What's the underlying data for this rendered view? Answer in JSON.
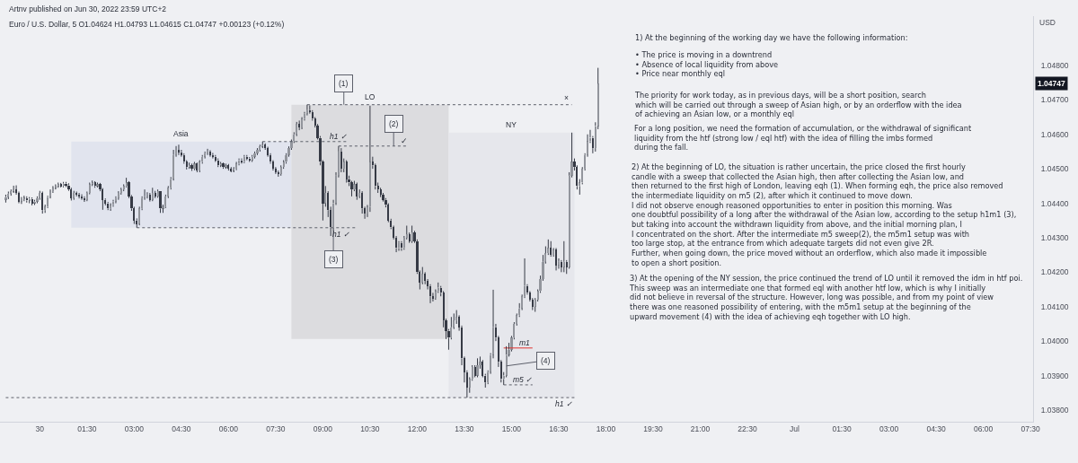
{
  "chart_data": {
    "type": "candlestick",
    "title": "Euro / U.S. Dollar, 5 O1.04624 H1.04793 L1.04615 C1.04747 +0.00123 (+0.12%)",
    "ylabel": "USD",
    "color": "#363a45",
    "colors": [
      "#92959c",
      "#92959c",
      "#92959c",
      "#92959c",
      "#363a45",
      "#363a45",
      "#92959c",
      "#92959c",
      "#363a45",
      "#92959c",
      "#363a45",
      "#92959c",
      "#92959c",
      "#92959c",
      "#363a45",
      "#92959c",
      "#92959c",
      "#92959c",
      "#92959c",
      "#92959c",
      "#92959c",
      "#363a45",
      "#92959c",
      "#363a45",
      "#363a45",
      "#363a45",
      "#92959c",
      "#363a45",
      "#363a45",
      "#363a45",
      "#363a45",
      "#92959c",
      "#92959c",
      "#92959c",
      "#363a45",
      "#92959c",
      "#363a45",
      "#363a45",
      "#363a45",
      "#363a45",
      "#92959c",
      "#92959c",
      "#92959c",
      "#92959c",
      "#92959c",
      "#92959c",
      "#92959c",
      "#363a45",
      "#363a45",
      "#363a45",
      "#363a45",
      "#92959c",
      "#92959c",
      "#92959c",
      "#92959c",
      "#363a45",
      "#92959c",
      "#363a45",
      "#92959c",
      "#363a45",
      "#92959c",
      "#92959c",
      "#92959c",
      "#92959c",
      "#92959c",
      "#92959c",
      "#363a45",
      "#363a45",
      "#363a45",
      "#363a45",
      "#92959c",
      "#363a45",
      "#92959c",
      "#363a45",
      "#92959c",
      "#92959c",
      "#92959c",
      "#92959c",
      "#363a45",
      "#363a45",
      "#363a45",
      "#363a45",
      "#92959c",
      "#363a45",
      "#92959c",
      "#363a45",
      "#363a45",
      "#92959c",
      "#92959c",
      "#92959c",
      "#363a45",
      "#92959c",
      "#363a45",
      "#363a45",
      "#92959c",
      "#92959c",
      "#92959c",
      "#92959c",
      "#92959c",
      "#363a45",
      "#363a45",
      "#363a45",
      "#363a45",
      "#363a45",
      "#363a45",
      "#92959c",
      "#92959c",
      "#92959c",
      "#92959c",
      "#92959c",
      "#92959c",
      "#92959c",
      "#363a45",
      "#92959c",
      "#92959c",
      "#92959c",
      "#363a45",
      "#363a45",
      "#363a45",
      "#363a45",
      "#363a45",
      "#363a45",
      "#92959c",
      "#363a45",
      "#363a45",
      "#92959c",
      "#92959c",
      "#92959c",
      "#363a45",
      "#92959c",
      "#363a45",
      "#363a45",
      "#363a45",
      "#92959c",
      "#363a45",
      "#92959c",
      "#363a45",
      "#363a45",
      "#92959c",
      "#92959c",
      "#363a45",
      "#363a45",
      "#363a45",
      "#363a45",
      "#363a45",
      "#363a45",
      "#363a45",
      "#363a45",
      "#363a45",
      "#363a45",
      "#92959c",
      "#363a45",
      "#92959c",
      "#92959c",
      "#363a45",
      "#92959c",
      "#363a45",
      "#363a45",
      "#363a45",
      "#92959c",
      "#363a45",
      "#363a45",
      "#363a45",
      "#363a45",
      "#92959c",
      "#92959c",
      "#363a45",
      "#363a45",
      "#363a45",
      "#363a45",
      "#92959c",
      "#92959c",
      "#92959c",
      "#363a45",
      "#363a45",
      "#363a45",
      "#363a45",
      "#92959c",
      "#92959c",
      "#363a45",
      "#92959c",
      "#92959c",
      "#363a45",
      "#363a45",
      "#92959c",
      "#92959c",
      "#92959c",
      "#363a45",
      "#363a45",
      "#363a45",
      "#92959c",
      "#92959c",
      "#92959c",
      "#92959c",
      "#92959c",
      "#92959c",
      "#92959c",
      "#92959c",
      "#92959c",
      "#363a45",
      "#363a45",
      "#363a45",
      "#92959c",
      "#92959c",
      "#92959c",
      "#92959c",
      "#92959c",
      "#92959c",
      "#363a45",
      "#92959c",
      "#363a45",
      "#92959c",
      "#363a45",
      "#92959c",
      "#363a45",
      "#92959c",
      "#92959c",
      "#363a45",
      "#363a45",
      "#92959c",
      "#92959c",
      "#92959c",
      "#92959c",
      "#92959c",
      "#363a45",
      "#92959c",
      "#92959c"
    ],
    "x": [
      "2022-06-29T22:55",
      "2022-06-29T23:00",
      "2022-06-29T23:05",
      "2022-06-29T23:10",
      "2022-06-29T23:15",
      "2022-06-29T23:20",
      "2022-06-29T23:25",
      "2022-06-29T23:30",
      "2022-06-29T23:35",
      "2022-06-29T23:40",
      "2022-06-29T23:45",
      "2022-06-29T23:50",
      "2022-06-29T23:55",
      "2022-06-30T00:00",
      "2022-06-30T00:05",
      "2022-06-30T00:10",
      "2022-06-30T00:15",
      "2022-06-30T00:20",
      "2022-06-30T00:25",
      "2022-06-30T00:30",
      "2022-06-30T00:35",
      "2022-06-30T00:40",
      "2022-06-30T00:45",
      "2022-06-30T00:50",
      "2022-06-30T00:55",
      "2022-06-30T01:00",
      "2022-06-30T01:05",
      "2022-06-30T01:10",
      "2022-06-30T01:15",
      "2022-06-30T01:20",
      "2022-06-30T01:25",
      "2022-06-30T01:30",
      "2022-06-30T01:35",
      "2022-06-30T01:40",
      "2022-06-30T01:45",
      "2022-06-30T01:50",
      "2022-06-30T01:55",
      "2022-06-30T02:00",
      "2022-06-30T02:05",
      "2022-06-30T02:10",
      "2022-06-30T02:15",
      "2022-06-30T02:20",
      "2022-06-30T02:25",
      "2022-06-30T02:30",
      "2022-06-30T02:35",
      "2022-06-30T02:40",
      "2022-06-30T02:45",
      "2022-06-30T02:50",
      "2022-06-30T02:55",
      "2022-06-30T03:00",
      "2022-06-30T03:05",
      "2022-06-30T03:10",
      "2022-06-30T03:15",
      "2022-06-30T03:20",
      "2022-06-30T03:25",
      "2022-06-30T03:30",
      "2022-06-30T03:35",
      "2022-06-30T03:40",
      "2022-06-30T03:45",
      "2022-06-30T03:50",
      "2022-06-30T03:55",
      "2022-06-30T04:00",
      "2022-06-30T04:05",
      "2022-06-30T04:10",
      "2022-06-30T04:15",
      "2022-06-30T04:20",
      "2022-06-30T04:25",
      "2022-06-30T04:30",
      "2022-06-30T04:35",
      "2022-06-30T04:40",
      "2022-06-30T04:45",
      "2022-06-30T04:50",
      "2022-06-30T04:55",
      "2022-06-30T05:00",
      "2022-06-30T05:05",
      "2022-06-30T05:10",
      "2022-06-30T05:15",
      "2022-06-30T05:20",
      "2022-06-30T05:25",
      "2022-06-30T05:30",
      "2022-06-30T05:35",
      "2022-06-30T05:40",
      "2022-06-30T05:45",
      "2022-06-30T05:50",
      "2022-06-30T05:55",
      "2022-06-30T06:00",
      "2022-06-30T06:05",
      "2022-06-30T06:10",
      "2022-06-30T06:15",
      "2022-06-30T06:20",
      "2022-06-30T06:25",
      "2022-06-30T06:30",
      "2022-06-30T06:35",
      "2022-06-30T06:40",
      "2022-06-30T06:45",
      "2022-06-30T06:50",
      "2022-06-30T06:55",
      "2022-06-30T07:00",
      "2022-06-30T07:05",
      "2022-06-30T07:10",
      "2022-06-30T07:15",
      "2022-06-30T07:20",
      "2022-06-30T07:25",
      "2022-06-30T07:30",
      "2022-06-30T07:35",
      "2022-06-30T07:40",
      "2022-06-30T07:45",
      "2022-06-30T07:50",
      "2022-06-30T07:55",
      "2022-06-30T08:00",
      "2022-06-30T08:05",
      "2022-06-30T08:10",
      "2022-06-30T08:15",
      "2022-06-30T08:20",
      "2022-06-30T08:25",
      "2022-06-30T08:30",
      "2022-06-30T08:35",
      "2022-06-30T08:40",
      "2022-06-30T08:45",
      "2022-06-30T08:50",
      "2022-06-30T08:55",
      "2022-06-30T09:00",
      "2022-06-30T09:05",
      "2022-06-30T09:10",
      "2022-06-30T09:15",
      "2022-06-30T09:20",
      "2022-06-30T09:25",
      "2022-06-30T09:30",
      "2022-06-30T09:35",
      "2022-06-30T09:40",
      "2022-06-30T09:45",
      "2022-06-30T09:50",
      "2022-06-30T09:55",
      "2022-06-30T10:00",
      "2022-06-30T10:05",
      "2022-06-30T10:10",
      "2022-06-30T10:15",
      "2022-06-30T10:20",
      "2022-06-30T10:25",
      "2022-06-30T10:30",
      "2022-06-30T10:35",
      "2022-06-30T10:40",
      "2022-06-30T10:45",
      "2022-06-30T10:50",
      "2022-06-30T10:55",
      "2022-06-30T11:00",
      "2022-06-30T11:05",
      "2022-06-30T11:10",
      "2022-06-30T11:15",
      "2022-06-30T11:20",
      "2022-06-30T11:25",
      "2022-06-30T11:30",
      "2022-06-30T11:35",
      "2022-06-30T11:40",
      "2022-06-30T11:45",
      "2022-06-30T11:50",
      "2022-06-30T11:55",
      "2022-06-30T12:00",
      "2022-06-30T12:05",
      "2022-06-30T12:10",
      "2022-06-30T12:15",
      "2022-06-30T12:20",
      "2022-06-30T12:25",
      "2022-06-30T12:30",
      "2022-06-30T12:35",
      "2022-06-30T12:40",
      "2022-06-30T12:45",
      "2022-06-30T12:50",
      "2022-06-30T12:55",
      "2022-06-30T13:00",
      "2022-06-30T13:05",
      "2022-06-30T13:10",
      "2022-06-30T13:15",
      "2022-06-30T13:20",
      "2022-06-30T13:25",
      "2022-06-30T13:30",
      "2022-06-30T13:35",
      "2022-06-30T13:40",
      "2022-06-30T13:45",
      "2022-06-30T13:50",
      "2022-06-30T13:55",
      "2022-06-30T14:00",
      "2022-06-30T14:05",
      "2022-06-30T14:10",
      "2022-06-30T14:15",
      "2022-06-30T14:20",
      "2022-06-30T14:25",
      "2022-06-30T14:30",
      "2022-06-30T14:35",
      "2022-06-30T14:40",
      "2022-06-30T14:45",
      "2022-06-30T14:50",
      "2022-06-30T14:55",
      "2022-06-30T15:00",
      "2022-06-30T15:05",
      "2022-06-30T15:10",
      "2022-06-30T15:15",
      "2022-06-30T15:20",
      "2022-06-30T15:25",
      "2022-06-30T15:30",
      "2022-06-30T15:35",
      "2022-06-30T15:40",
      "2022-06-30T15:45",
      "2022-06-30T15:50",
      "2022-06-30T15:55",
      "2022-06-30T16:00",
      "2022-06-30T16:05",
      "2022-06-30T16:10",
      "2022-06-30T16:15",
      "2022-06-30T16:20",
      "2022-06-30T16:25",
      "2022-06-30T16:30",
      "2022-06-30T16:35",
      "2022-06-30T16:40",
      "2022-06-30T16:45",
      "2022-06-30T16:50",
      "2022-06-30T16:55",
      "2022-06-30T17:00",
      "2022-06-30T17:05",
      "2022-06-30T17:10",
      "2022-06-30T17:15",
      "2022-06-30T17:20",
      "2022-06-30T17:25",
      "2022-06-30T17:30",
      "2022-06-30T17:35",
      "2022-06-30T17:40",
      "2022-06-30T17:45"
    ],
    "ohlc": [
      [
        1.0441,
        1.04425,
        1.04402,
        1.04418
      ],
      [
        1.04418,
        1.04434,
        1.04412,
        1.04428
      ],
      [
        1.04428,
        1.0444,
        1.04422,
        1.04435
      ],
      [
        1.04435,
        1.04451,
        1.0443,
        1.0444
      ],
      [
        1.0444,
        1.04452,
        1.04425,
        1.0443
      ],
      [
        1.0443,
        1.04434,
        1.044,
        1.04405
      ],
      [
        1.04405,
        1.04418,
        1.04398,
        1.04412
      ],
      [
        1.04412,
        1.04422,
        1.04406,
        1.04415
      ],
      [
        1.04415,
        1.0442,
        1.04402,
        1.04408
      ],
      [
        1.04408,
        1.04418,
        1.044,
        1.04413
      ],
      [
        1.04413,
        1.04417,
        1.04394,
        1.044
      ],
      [
        1.044,
        1.0441,
        1.04395,
        1.04405
      ],
      [
        1.04405,
        1.0442,
        1.044,
        1.04415
      ],
      [
        1.04415,
        1.04436,
        1.0441,
        1.0443
      ],
      [
        1.0443,
        1.04434,
        1.0437,
        1.0438
      ],
      [
        1.0438,
        1.04396,
        1.04372,
        1.0439
      ],
      [
        1.0439,
        1.04422,
        1.04386,
        1.04418
      ],
      [
        1.04418,
        1.0444,
        1.04414,
        1.04435
      ],
      [
        1.04435,
        1.0445,
        1.0443,
        1.04445
      ],
      [
        1.04445,
        1.04455,
        1.0444,
        1.0445
      ],
      [
        1.0445,
        1.0446,
        1.04445,
        1.04455
      ],
      [
        1.04455,
        1.04459,
        1.04446,
        1.0445
      ],
      [
        1.0445,
        1.04462,
        1.04446,
        1.04457
      ],
      [
        1.04457,
        1.04462,
        1.04447,
        1.04452
      ],
      [
        1.04452,
        1.04458,
        1.04436,
        1.0444
      ],
      [
        1.0444,
        1.04445,
        1.04408,
        1.04415
      ],
      [
        1.04415,
        1.04436,
        1.0441,
        1.0443
      ],
      [
        1.0443,
        1.04434,
        1.0442,
        1.04425
      ],
      [
        1.04425,
        1.0443,
        1.04414,
        1.0442
      ],
      [
        1.0442,
        1.04426,
        1.0441,
        1.04415
      ],
      [
        1.04415,
        1.0442,
        1.04404,
        1.0441
      ],
      [
        1.0441,
        1.04434,
        1.04406,
        1.0443
      ],
      [
        1.0443,
        1.0446,
        1.04426,
        1.04455
      ],
      [
        1.04455,
        1.04466,
        1.0445,
        1.0446
      ],
      [
        1.0446,
        1.04464,
        1.04445,
        1.0445
      ],
      [
        1.0445,
        1.0446,
        1.04446,
        1.04455
      ],
      [
        1.04455,
        1.04459,
        1.04435,
        1.0444
      ],
      [
        1.0444,
        1.04444,
        1.04381,
        1.0441
      ],
      [
        1.0441,
        1.04414,
        1.04394,
        1.044
      ],
      [
        1.044,
        1.04404,
        1.0438,
        1.04385
      ],
      [
        1.04385,
        1.044,
        1.04378,
        1.04395
      ],
      [
        1.04395,
        1.0441,
        1.0439,
        1.04405
      ],
      [
        1.04405,
        1.0442,
        1.044,
        1.04415
      ],
      [
        1.04415,
        1.04435,
        1.0441,
        1.0443
      ],
      [
        1.0443,
        1.04445,
        1.04425,
        1.0444
      ],
      [
        1.0444,
        1.04455,
        1.04435,
        1.0445
      ],
      [
        1.0445,
        1.04474,
        1.04446,
        1.0446
      ],
      [
        1.0446,
        1.04464,
        1.04415,
        1.0442
      ],
      [
        1.0442,
        1.04424,
        1.04378,
        1.04385
      ],
      [
        1.04385,
        1.0439,
        1.0434,
        1.0435
      ],
      [
        1.0435,
        1.04356,
        1.04329,
        1.0434
      ],
      [
        1.0434,
        1.0439,
        1.04336,
        1.04385
      ],
      [
        1.04385,
        1.0442,
        1.0438,
        1.04415
      ],
      [
        1.04415,
        1.0444,
        1.0441,
        1.0442
      ],
      [
        1.0442,
        1.04432,
        1.04414,
        1.04425
      ],
      [
        1.04425,
        1.0443,
        1.04405,
        1.0441
      ],
      [
        1.0441,
        1.04445,
        1.04406,
        1.0443
      ],
      [
        1.0443,
        1.04436,
        1.04415,
        1.0442
      ],
      [
        1.0442,
        1.0444,
        1.04416,
        1.04435
      ],
      [
        1.04435,
        1.04435,
        1.04372,
        1.04385
      ],
      [
        1.04385,
        1.04396,
        1.04372,
        1.0439
      ],
      [
        1.0439,
        1.04425,
        1.04386,
        1.0442
      ],
      [
        1.0442,
        1.0445,
        1.04415,
        1.04445
      ],
      [
        1.04445,
        1.04476,
        1.0444,
        1.0447
      ],
      [
        1.0447,
        1.04555,
        1.04466,
        1.0454
      ],
      [
        1.0454,
        1.04566,
        1.04535,
        1.04555
      ],
      [
        1.04555,
        1.0457,
        1.0454,
        1.04548
      ],
      [
        1.04548,
        1.04555,
        1.04535,
        1.0454
      ],
      [
        1.0454,
        1.04545,
        1.04515,
        1.0452
      ],
      [
        1.0452,
        1.04525,
        1.04498,
        1.04505
      ],
      [
        1.04505,
        1.04518,
        1.045,
        1.0451
      ],
      [
        1.0451,
        1.04515,
        1.04494,
        1.045
      ],
      [
        1.045,
        1.0452,
        1.04496,
        1.04515
      ],
      [
        1.04515,
        1.04518,
        1.0449,
        1.04495
      ],
      [
        1.04495,
        1.04525,
        1.0449,
        1.0452
      ],
      [
        1.0452,
        1.0454,
        1.04515,
        1.04535
      ],
      [
        1.04535,
        1.0455,
        1.0453,
        1.04545
      ],
      [
        1.04545,
        1.04558,
        1.0454,
        1.0455
      ],
      [
        1.0455,
        1.04554,
        1.04535,
        1.0454
      ],
      [
        1.0454,
        1.04546,
        1.0453,
        1.04535
      ],
      [
        1.04535,
        1.0454,
        1.0452,
        1.04525
      ],
      [
        1.04525,
        1.0453,
        1.04505,
        1.0451
      ],
      [
        1.0451,
        1.0452,
        1.04505,
        1.04515
      ],
      [
        1.04515,
        1.04518,
        1.045,
        1.04505
      ],
      [
        1.04505,
        1.04515,
        1.045,
        1.0451
      ],
      [
        1.0451,
        1.04514,
        1.04495,
        1.045
      ],
      [
        1.045,
        1.04505,
        1.0449,
        1.04495
      ],
      [
        1.04495,
        1.04505,
        1.0449,
        1.045
      ],
      [
        1.045,
        1.0452,
        1.04496,
        1.04515
      ],
      [
        1.04515,
        1.0453,
        1.0451,
        1.04525
      ],
      [
        1.04525,
        1.0453,
        1.04515,
        1.0452
      ],
      [
        1.0452,
        1.0454,
        1.04516,
        1.04535
      ],
      [
        1.04535,
        1.0454,
        1.04525,
        1.0453
      ],
      [
        1.0453,
        1.04534,
        1.0452,
        1.04525
      ],
      [
        1.04525,
        1.0454,
        1.0452,
        1.04535
      ],
      [
        1.04535,
        1.0455,
        1.0453,
        1.04545
      ],
      [
        1.04545,
        1.0456,
        1.0454,
        1.04555
      ],
      [
        1.04555,
        1.0457,
        1.0455,
        1.04565
      ],
      [
        1.04565,
        1.04579,
        1.0456,
        1.0457
      ],
      [
        1.0457,
        1.04574,
        1.04555,
        1.0456
      ],
      [
        1.0456,
        1.04564,
        1.04535,
        1.0454
      ],
      [
        1.0454,
        1.04545,
        1.04515,
        1.0452
      ],
      [
        1.0452,
        1.04525,
        1.04495,
        1.045
      ],
      [
        1.045,
        1.04505,
        1.04485,
        1.0449
      ],
      [
        1.0449,
        1.04495,
        1.04477,
        1.04485
      ],
      [
        1.04485,
        1.0451,
        1.0448,
        1.04505
      ],
      [
        1.04505,
        1.04525,
        1.045,
        1.0452
      ],
      [
        1.0452,
        1.04545,
        1.04515,
        1.0454
      ],
      [
        1.0454,
        1.04565,
        1.04535,
        1.0456
      ],
      [
        1.0456,
        1.04585,
        1.04555,
        1.0458
      ],
      [
        1.0458,
        1.04606,
        1.04575,
        1.046
      ],
      [
        1.046,
        1.04636,
        1.04595,
        1.0463
      ],
      [
        1.0463,
        1.0464,
        1.04612,
        1.0462
      ],
      [
        1.0462,
        1.0465,
        1.04615,
        1.04645
      ],
      [
        1.04645,
        1.04665,
        1.0464,
        1.0466
      ],
      [
        1.0466,
        1.04686,
        1.04655,
        1.0467
      ],
      [
        1.0467,
        1.04684,
        1.0466,
        1.04665
      ],
      [
        1.04665,
        1.0467,
        1.0464,
        1.04645
      ],
      [
        1.04645,
        1.0465,
        1.0462,
        1.04625
      ],
      [
        1.04625,
        1.0463,
        1.04585,
        1.0459
      ],
      [
        1.0459,
        1.04595,
        1.0451,
        1.0452
      ],
      [
        1.0452,
        1.04525,
        1.0435,
        1.044
      ],
      [
        1.044,
        1.0445,
        1.0439,
        1.0443
      ],
      [
        1.0443,
        1.04435,
        1.0436,
        1.0438
      ],
      [
        1.0438,
        1.0439,
        1.04305,
        1.0433
      ],
      [
        1.0433,
        1.0441,
        1.0432,
        1.044
      ],
      [
        1.044,
        1.0449,
        1.04395,
        1.0448
      ],
      [
        1.0448,
        1.04566,
        1.04475,
        1.0455
      ],
      [
        1.0455,
        1.0456,
        1.0449,
        1.045
      ],
      [
        1.045,
        1.0453,
        1.0449,
        1.0452
      ],
      [
        1.0452,
        1.04525,
        1.0446,
        1.0447
      ],
      [
        1.0447,
        1.0448,
        1.0445,
        1.0446
      ],
      [
        1.0446,
        1.04465,
        1.0442,
        1.0444
      ],
      [
        1.0444,
        1.04465,
        1.04435,
        1.04455
      ],
      [
        1.04455,
        1.0446,
        1.0441,
        1.0442
      ],
      [
        1.0442,
        1.0444,
        1.04415,
        1.0443
      ],
      [
        1.0443,
        1.04435,
        1.0437,
        1.04385
      ],
      [
        1.04385,
        1.0439,
        1.04355,
        1.0437
      ],
      [
        1.0437,
        1.04395,
        1.0436,
        1.0439
      ],
      [
        1.0439,
        1.04683,
        1.04375,
        1.0452
      ],
      [
        1.0452,
        1.04535,
        1.045,
        1.0451
      ],
      [
        1.0451,
        1.04515,
        1.0444,
        1.0445
      ],
      [
        1.0445,
        1.0446,
        1.0443,
        1.0444
      ],
      [
        1.0444,
        1.04445,
        1.04418,
        1.04425
      ],
      [
        1.04425,
        1.0443,
        1.04405,
        1.0441
      ],
      [
        1.0441,
        1.04415,
        1.04388,
        1.04395
      ],
      [
        1.04395,
        1.044,
        1.04345,
        1.0435
      ],
      [
        1.0435,
        1.04355,
        1.04325,
        1.0433
      ],
      [
        1.0433,
        1.04335,
        1.04295,
        1.043
      ],
      [
        1.043,
        1.04305,
        1.04258,
        1.0427
      ],
      [
        1.0427,
        1.0429,
        1.04262,
        1.04285
      ],
      [
        1.04285,
        1.0429,
        1.04262,
        1.0427
      ],
      [
        1.0427,
        1.04305,
        1.04265,
        1.043
      ],
      [
        1.043,
        1.04335,
        1.04295,
        1.0431
      ],
      [
        1.0431,
        1.04315,
        1.04285,
        1.0429
      ],
      [
        1.0429,
        1.04335,
        1.04285,
        1.04315
      ],
      [
        1.04315,
        1.0432,
        1.04285,
        1.0429
      ],
      [
        1.0429,
        1.04295,
        1.04195,
        1.042
      ],
      [
        1.042,
        1.04205,
        1.0415,
        1.0417
      ],
      [
        1.0417,
        1.04215,
        1.04165,
        1.04195
      ],
      [
        1.04195,
        1.042,
        1.04165,
        1.04175
      ],
      [
        1.04175,
        1.0418,
        1.0415,
        1.0416
      ],
      [
        1.0416,
        1.04165,
        1.0411,
        1.0413
      ],
      [
        1.0413,
        1.0414,
        1.04115,
        1.04125
      ],
      [
        1.04125,
        1.0415,
        1.0412,
        1.04145
      ],
      [
        1.04145,
        1.0417,
        1.0414,
        1.04155
      ],
      [
        1.04155,
        1.0416,
        1.0413,
        1.0414
      ],
      [
        1.0414,
        1.04145,
        1.0404,
        1.0406
      ],
      [
        1.0406,
        1.04065,
        1.04006,
        1.0403
      ],
      [
        1.0403,
        1.04035,
        1.03975,
        1.0401
      ],
      [
        1.0401,
        1.0407,
        1.04005,
        1.0404
      ],
      [
        1.0404,
        1.0408,
        1.04035,
        1.0406
      ],
      [
        1.0406,
        1.0409,
        1.0405,
        1.0407
      ],
      [
        1.0407,
        1.04075,
        1.0403,
        1.0404
      ],
      [
        1.0404,
        1.04045,
        1.0393,
        1.0395
      ],
      [
        1.0395,
        1.03955,
        1.0388,
        1.0391
      ],
      [
        1.0391,
        1.03915,
        1.03836,
        1.03865
      ],
      [
        1.03865,
        1.03895,
        1.0385,
        1.0389
      ],
      [
        1.0389,
        1.0393,
        1.03885,
        1.03925
      ],
      [
        1.03925,
        1.0393,
        1.03895,
        1.039
      ],
      [
        1.039,
        1.0395,
        1.03895,
        1.0393
      ],
      [
        1.0393,
        1.03955,
        1.0392,
        1.0394
      ],
      [
        1.0394,
        1.03945,
        1.03895,
        1.039
      ],
      [
        1.039,
        1.03905,
        1.03865,
        1.0388
      ],
      [
        1.0388,
        1.03915,
        1.03875,
        1.0391
      ],
      [
        1.0391,
        1.03965,
        1.03905,
        1.0396
      ],
      [
        1.0396,
        1.04149,
        1.0395,
        1.0404
      ],
      [
        1.0404,
        1.0405,
        1.04,
        1.0401
      ],
      [
        1.0401,
        1.04015,
        1.03925,
        1.0394
      ],
      [
        1.0394,
        1.03945,
        1.0388,
        1.0389
      ],
      [
        1.0389,
        1.0391,
        1.03873,
        1.039
      ],
      [
        1.039,
        1.03985,
        1.03895,
        1.0396
      ],
      [
        1.0396,
        1.03995,
        1.03955,
        1.03975
      ],
      [
        1.03975,
        1.04015,
        1.0397,
        1.0401
      ],
      [
        1.0401,
        1.04055,
        1.04005,
        1.0405
      ],
      [
        1.0405,
        1.0408,
        1.04045,
        1.04075
      ],
      [
        1.04075,
        1.0411,
        1.0407,
        1.04095
      ],
      [
        1.04095,
        1.04135,
        1.0409,
        1.0413
      ],
      [
        1.0413,
        1.0424,
        1.04125,
        1.0416
      ],
      [
        1.0416,
        1.04165,
        1.04135,
        1.0414
      ],
      [
        1.0414,
        1.04145,
        1.04115,
        1.0412
      ],
      [
        1.0412,
        1.04125,
        1.0409,
        1.041
      ],
      [
        1.041,
        1.04125,
        1.04085,
        1.0412
      ],
      [
        1.0412,
        1.0415,
        1.04115,
        1.04145
      ],
      [
        1.04145,
        1.0419,
        1.0414,
        1.0418
      ],
      [
        1.0418,
        1.0425,
        1.04175,
        1.0423
      ],
      [
        1.0423,
        1.04275,
        1.04225,
        1.04255
      ],
      [
        1.04255,
        1.04295,
        1.0425,
        1.0427
      ],
      [
        1.0427,
        1.0429,
        1.04245,
        1.0425
      ],
      [
        1.0425,
        1.0427,
        1.04245,
        1.04265
      ],
      [
        1.04265,
        1.0427,
        1.04205,
        1.0422
      ],
      [
        1.0422,
        1.0424,
        1.0421,
        1.0423
      ],
      [
        1.0423,
        1.04235,
        1.042,
        1.04215
      ],
      [
        1.04215,
        1.0429,
        1.042,
        1.0423
      ],
      [
        1.0423,
        1.04235,
        1.04195,
        1.04215
      ],
      [
        1.04215,
        1.0449,
        1.0421,
        1.0448
      ],
      [
        1.0448,
        1.04605,
        1.04475,
        1.0452
      ],
      [
        1.0452,
        1.0453,
        1.04495,
        1.04505
      ],
      [
        1.04505,
        1.0451,
        1.0444,
        1.0445
      ],
      [
        1.0445,
        1.0447,
        1.04425,
        1.0446
      ],
      [
        1.0446,
        1.04505,
        1.04455,
        1.045
      ],
      [
        1.045,
        1.04545,
        1.04495,
        1.0454
      ],
      [
        1.0454,
        1.046,
        1.04535,
        1.0458
      ],
      [
        1.0458,
        1.04613,
        1.04575,
        1.0459
      ],
      [
        1.0459,
        1.04595,
        1.04545,
        1.0456
      ],
      [
        1.0456,
        1.04635,
        1.0455,
        1.04624
      ],
      [
        1.04624,
        1.04793,
        1.04615,
        1.04747
      ]
    ],
    "series": [
      {
        "type": "line",
        "color": "#5d606b",
        "line_style": "dotted",
        "x": [
          "2022-06-29T22:55",
          "2022-06-30T17:00"
        ],
        "values": [
          1.03836,
          1.03836
        ]
      },
      {
        "type": "line",
        "color": "#5d606b",
        "line_style": "dotted",
        "x": [
          "2022-06-30T03:05",
          "2022-06-30T10:05"
        ],
        "values": [
          1.04329,
          1.04329
        ]
      },
      {
        "type": "line",
        "color": "#5d606b",
        "line_style": "dotted",
        "x": [
          "2022-06-30T07:05",
          "2022-06-30T09:45"
        ],
        "values": [
          1.04579,
          1.04579
        ]
      },
      {
        "type": "line",
        "color": "#5d606b",
        "line_style": "dotted",
        "x": [
          "2022-06-30T09:30",
          "2022-06-30T11:40"
        ],
        "values": [
          1.04566,
          1.04566
        ]
      },
      {
        "type": "line",
        "color": "#5d606b",
        "line_style": "dotted",
        "x": [
          "2022-06-30T08:30",
          "2022-06-30T16:55"
        ],
        "values": [
          1.04686,
          1.04686
        ]
      },
      {
        "type": "line",
        "color": "#5d606b",
        "line_style": "dotted",
        "x": [
          "2022-06-30T14:45",
          "2022-06-30T15:40"
        ],
        "values": [
          1.03873,
          1.03873
        ]
      },
      {
        "type": "line",
        "color": "#e0322f",
        "line_style": "solid",
        "x": [
          "2022-06-30T14:45",
          "2022-06-30T15:40"
        ],
        "values": [
          1.0398,
          1.0398
        ]
      }
    ],
    "bands": [
      {
        "axis": "x",
        "from": "2022-06-30T01:00",
        "to": "2022-06-30T08:00",
        "label": "Asia",
        "color": "#e1e4ee"
      },
      {
        "axis": "x",
        "from": "2022-06-30T08:00",
        "to": "2022-06-30T13:00",
        "label": "LO",
        "color": "#dcdcdf"
      },
      {
        "axis": "x",
        "from": "2022-06-30T13:00",
        "to": "2022-06-30T17:00",
        "label": "NY",
        "color": "#e6e7ec"
      }
    ],
    "xlim": [
      "2022-06-29T22:44",
      "2022-07-01T07:35"
    ],
    "xticks": [
      {
        "value": "2022-06-30T00:00",
        "label": "30"
      },
      {
        "value": "2022-06-30T01:30",
        "label": "01:30"
      },
      {
        "value": "2022-06-30T03:00",
        "label": "03:00"
      },
      {
        "value": "2022-06-30T04:30",
        "label": "04:30"
      },
      {
        "value": "2022-06-30T06:00",
        "label": "06:00"
      },
      {
        "value": "2022-06-30T07:30",
        "label": "07:30"
      },
      {
        "value": "2022-06-30T09:00",
        "label": "09:00"
      },
      {
        "value": "2022-06-30T10:30",
        "label": "10:30"
      },
      {
        "value": "2022-06-30T12:00",
        "label": "12:00"
      },
      {
        "value": "2022-06-30T13:30",
        "label": "13:30"
      },
      {
        "value": "2022-06-30T15:00",
        "label": "15:00"
      },
      {
        "value": "2022-06-30T16:30",
        "label": "16:30"
      },
      {
        "value": "2022-06-30T18:00",
        "label": "18:00"
      },
      {
        "value": "2022-06-30T19:30",
        "label": "19:30"
      },
      {
        "value": "2022-06-30T21:00",
        "label": "21:00"
      },
      {
        "value": "2022-06-30T22:30",
        "label": "22:30"
      },
      {
        "value": "2022-07-01T00:00",
        "label": "Jul"
      },
      {
        "value": "2022-07-01T01:30",
        "label": "01:30"
      },
      {
        "value": "2022-07-01T03:00",
        "label": "03:00"
      },
      {
        "value": "2022-07-01T04:30",
        "label": "04:30"
      },
      {
        "value": "2022-07-01T06:00",
        "label": "06:00"
      },
      {
        "value": "2022-07-01T07:30",
        "label": "07:30"
      }
    ],
    "ylim": [
      1.03766,
      1.04943
    ],
    "yticks": [
      {
        "value": 1.038,
        "label": "1.03800"
      },
      {
        "value": 1.039,
        "label": "1.03900"
      },
      {
        "value": 1.04,
        "label": "1.04000"
      },
      {
        "value": 1.041,
        "label": "1.04100"
      },
      {
        "value": 1.042,
        "label": "1.04200"
      },
      {
        "value": 1.043,
        "label": "1.04300"
      },
      {
        "value": 1.044,
        "label": "1.04400"
      },
      {
        "value": 1.045,
        "label": "1.04500"
      },
      {
        "value": 1.046,
        "label": "1.04600"
      },
      {
        "value": 1.047,
        "label": "1.04700"
      },
      {
        "value": 1.048,
        "label": "1.04800"
      }
    ],
    "annotations": [
      "Artnv published on Jun 30, 2022 23:59 UTC+2",
      "1) At the beginning of the working day we have the following information:",
      "• The price is moving in a downtrend\n• Absence of local liquidity from above\n• Price near monthly eql",
      "The priority for work today, as in previous days, will be a short position, search\nwhich will be carried out through a sweep of Asian high, or by an orderflow with the idea\nof achieving an Asian low, or a monthly eql",
      "For a long position, we need the formation of accumulation, or the withdrawal of significant\nliquidity from the htf (strong low / eql htf) with the idea of filling the imbs formed\nduring the fall.",
      "2) At the beginning of LO, the situation is rather uncertain, the price closed the first hourly\ncandle with a sweep that collected the Asian high, then after collecting the Asian low, and\nthen returned to the first high of London, leaving eqh (1). When forming eqh, the price also removed\nthe intermediate liquidity on m5 (2), after which it continued to move down.\nI did not observe enough reasoned opportunities to enter in position this morning. Was\none doubtful possibility of a long after the withdrawal of the Asian low, according to the setup h1m1 (3),\nbut taking into account the withdrawn liquidity from above, and the initial morning plan, I\nI concentrated on the short. After the intermediate m5 sweep(2), the m5m1 setup was with\ntoo large stop, at the entrance from which adequate targets did not even give 2R.\nFurther, when going down, the price moved without an orderflow, which also made it impossible\nto open a short position.",
      "3) At the opening of the NY session, the price continued the trend of LO until it removed the idm in htf poi.\nThis sweep was an intermediate one that formed eql with another htf low, which is why I initially\ndid not believe in reversal of the structure. However, long was possible, and from my point of view\nthere was one reasoned possibility of entering, with the m5m1 setup at the beginning of the\nupward movement (4) with the idea of achieving eqh together with LO high.",
      {
        "text": "(1)",
        "x": "2022-06-30T09:40",
        "y": 1.04686
      },
      {
        "text": "(2)",
        "x": "2022-06-30T11:15",
        "y": 1.04566
      },
      {
        "text": "(3)",
        "x": "2022-06-30T09:20",
        "y": 1.04321
      },
      {
        "text": "(4)",
        "x": "2022-06-30T14:50",
        "y": 1.03928
      },
      {
        "text": "h1 ✓",
        "x": "2022-06-30T09:30",
        "y": 1.04579
      },
      {
        "text": "✓",
        "x": "2022-06-30T11:35",
        "y": 1.04566
      },
      {
        "text": "h1 ✓",
        "x": "2022-06-30T09:35",
        "y": 1.04329
      },
      {
        "text": "m1",
        "x": "2022-06-30T15:25",
        "y": 1.0398
      },
      {
        "text": "m5 ✓",
        "x": "2022-06-30T15:20",
        "y": 1.03873
      },
      {
        "text": "h1 ✓",
        "x": "2022-06-30T16:40",
        "y": 1.03836
      },
      {
        "text": "×",
        "x": "2022-06-30T16:45",
        "y": 1.04686
      },
      {
        "text": "1.04747",
        "y": 1.04747
      }
    ]
  }
}
